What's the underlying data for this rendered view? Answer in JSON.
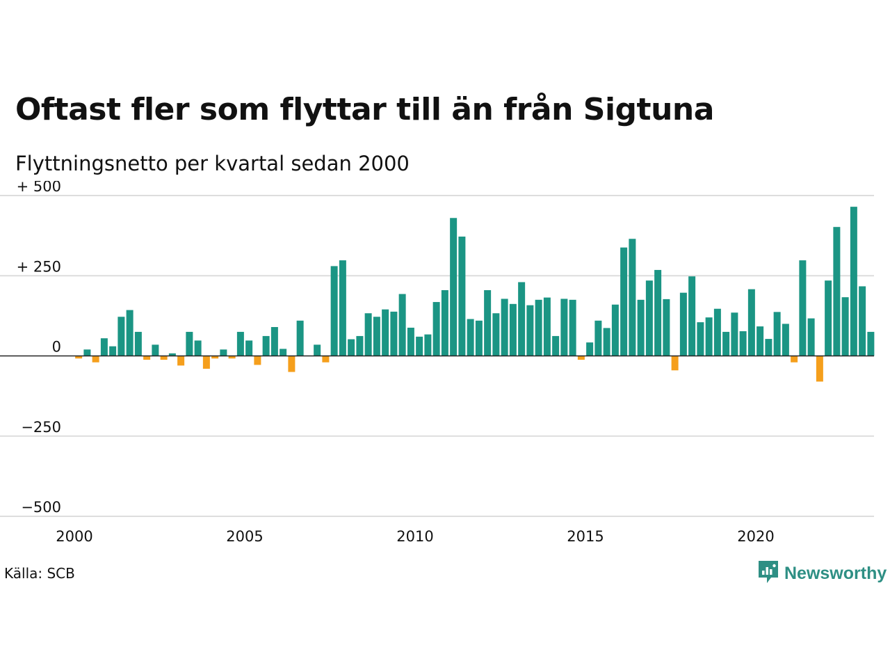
{
  "title": "Oftast fler som flyttar till än från Sigtuna",
  "subtitle": "Flyttningsnetto per kvartal sedan 2000",
  "source": "Källa: SCB",
  "brand": {
    "name": "Newsworthy",
    "icon": "newsworthy-logo-icon"
  },
  "colors": {
    "positive": "#1b9584",
    "negative": "#f59f1c",
    "grid": "#dddddd",
    "zero_line": "#222222"
  },
  "chart_data": {
    "type": "bar",
    "title": "Oftast fler som flyttar till än från Sigtuna",
    "subtitle": "Flyttningsnetto per kvartal sedan 2000",
    "xlabel": "",
    "ylabel": "",
    "ylim": [
      -500,
      500
    ],
    "yticks": [
      500,
      250,
      0,
      -250,
      -500
    ],
    "ytick_labels": [
      "+ 500",
      "+ 250",
      "0",
      "−250",
      "−500"
    ],
    "xticks": [
      2000,
      2005,
      2010,
      2015,
      2020
    ],
    "grid": true,
    "legend": "none",
    "categories": [
      "2000 K1",
      "2000 K2",
      "2000 K3",
      "2000 K4",
      "2001 K1",
      "2001 K2",
      "2001 K3",
      "2001 K4",
      "2002 K1",
      "2002 K2",
      "2002 K3",
      "2002 K4",
      "2003 K1",
      "2003 K2",
      "2003 K3",
      "2003 K4",
      "2004 K1",
      "2004 K2",
      "2004 K3",
      "2004 K4",
      "2005 K1",
      "2005 K2",
      "2005 K3",
      "2005 K4",
      "2006 K1",
      "2006 K2",
      "2006 K3",
      "2006 K4",
      "2007 K1",
      "2007 K2",
      "2007 K3",
      "2007 K4",
      "2008 K1",
      "2008 K2",
      "2008 K3",
      "2008 K4",
      "2009 K1",
      "2009 K2",
      "2009 K3",
      "2009 K4",
      "2010 K1",
      "2010 K2",
      "2010 K3",
      "2010 K4",
      "2011 K1",
      "2011 K2",
      "2011 K3",
      "2011 K4",
      "2012 K1",
      "2012 K2",
      "2012 K3",
      "2012 K4",
      "2013 K1",
      "2013 K2",
      "2013 K3",
      "2013 K4",
      "2014 K1",
      "2014 K2",
      "2014 K3",
      "2014 K4",
      "2015 K1",
      "2015 K2",
      "2015 K3",
      "2015 K4",
      "2016 K1",
      "2016 K2",
      "2016 K3",
      "2016 K4",
      "2017 K1",
      "2017 K2",
      "2017 K3",
      "2017 K4",
      "2018 K1",
      "2018 K2",
      "2018 K3",
      "2018 K4",
      "2019 K1",
      "2019 K2",
      "2019 K3",
      "2019 K4",
      "2020 K1",
      "2020 K2",
      "2020 K3",
      "2020 K4",
      "2021 K1",
      "2021 K2",
      "2021 K3",
      "2021 K4",
      "2022 K1",
      "2022 K2",
      "2022 K3",
      "2022 K4",
      "2023 K1",
      "2023 K2"
    ],
    "values": [
      -8,
      20,
      -20,
      55,
      30,
      122,
      143,
      75,
      -12,
      35,
      -12,
      8,
      -30,
      75,
      48,
      -40,
      -8,
      20,
      -8,
      75,
      48,
      -28,
      62,
      90,
      22,
      -50,
      110,
      0,
      35,
      -20,
      280,
      298,
      52,
      62,
      133,
      122,
      145,
      138,
      193,
      88,
      60,
      67,
      168,
      205,
      430,
      372,
      115,
      110,
      205,
      133,
      178,
      162,
      230,
      158,
      175,
      182,
      62,
      178,
      175,
      -12,
      42,
      110,
      87,
      160,
      338,
      365,
      175,
      235,
      268,
      177,
      -45,
      197,
      248,
      105,
      120,
      147,
      75,
      135,
      77,
      208,
      92,
      53,
      137,
      100,
      -20,
      298,
      117,
      -80,
      235,
      402,
      183,
      465,
      217,
      75
    ]
  }
}
